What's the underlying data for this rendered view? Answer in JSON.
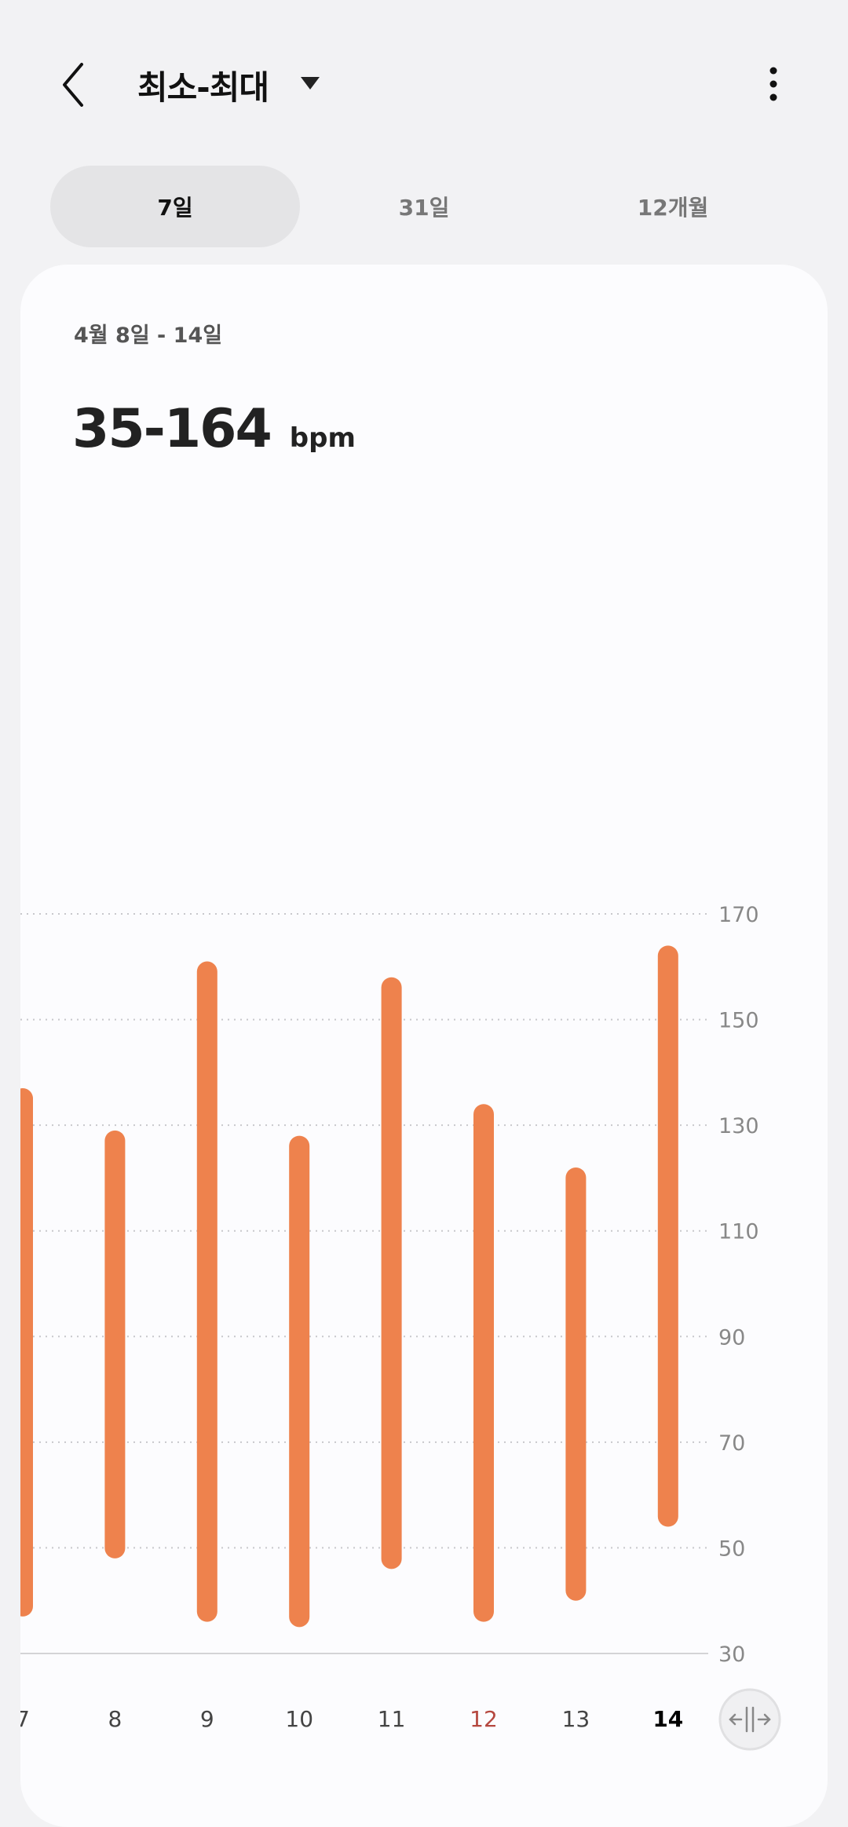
{
  "header": {
    "title": "최소-최대",
    "back_icon": "chevron-left-icon",
    "dropdown_icon": "triangle-down-icon",
    "more_icon": "more-vertical-icon"
  },
  "tabs": [
    {
      "label": "7일",
      "active": true
    },
    {
      "label": "31일",
      "active": false
    },
    {
      "label": "12개월",
      "active": false
    }
  ],
  "summary": {
    "date_range": "4월 8일 - 14일",
    "value": "35-164",
    "unit": "bpm"
  },
  "colors": {
    "bar": "#ee824d",
    "highlight_label": "#b5483f",
    "current_label": "#000000"
  },
  "chart_data": {
    "type": "bar",
    "subtype": "range",
    "categories": [
      "7",
      "8",
      "9",
      "10",
      "11",
      "12",
      "13",
      "14"
    ],
    "series": [
      {
        "min": [
          37,
          48,
          36,
          35,
          46,
          36,
          40,
          54
        ],
        "max": [
          137,
          129,
          161,
          128,
          158,
          134,
          122,
          164
        ]
      }
    ],
    "y_ticks": [
      "170",
      "150",
      "130",
      "110",
      "90",
      "70",
      "50",
      "30"
    ],
    "ylim": [
      30,
      170
    ],
    "y_axis_position": "right",
    "grid": true,
    "highlighted_category": "12",
    "current_category": "14",
    "scroll_handle_icon": "pan-horizontal-icon"
  }
}
